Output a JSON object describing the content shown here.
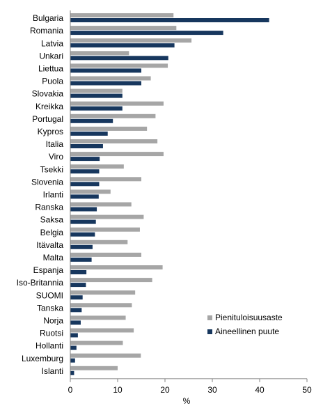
{
  "chart_data": {
    "type": "bar",
    "orientation": "horizontal",
    "categories": [
      "Bulgaria",
      "Romania",
      "Latvia",
      "Unkari",
      "Liettua",
      "Puola",
      "Slovakia",
      "Kreikka",
      "Portugal",
      "Kypros",
      "Italia",
      "Viro",
      "Tsekki",
      "Slovenia",
      "Irlanti",
      "Ranska",
      "Saksa",
      "Belgia",
      "Itävalta",
      "Malta",
      "Espanja",
      "Iso-Britannia",
      "SUOMI",
      "Tanska",
      "Norja",
      "Ruotsi",
      "Hollanti",
      "Luxemburg",
      "Islanti"
    ],
    "series": [
      {
        "name": "Pienituloisuusaste",
        "color": "#a6a6a6",
        "values": [
          21.8,
          22.4,
          25.6,
          12.4,
          20.6,
          17.0,
          11.0,
          19.7,
          18.0,
          16.2,
          18.4,
          19.7,
          11.3,
          15.0,
          8.5,
          12.9,
          15.5,
          14.7,
          12.1,
          15.0,
          19.5,
          17.3,
          13.7,
          13.0,
          11.7,
          13.4,
          11.1,
          14.9,
          10.0
        ]
      },
      {
        "name": "Aineellinen puute",
        "color": "#17375e",
        "values": [
          42.0,
          32.3,
          22.0,
          20.7,
          15.0,
          15.0,
          11.0,
          11.0,
          9.0,
          7.9,
          6.9,
          6.2,
          6.1,
          6.1,
          6.0,
          5.6,
          5.4,
          5.2,
          4.7,
          4.5,
          3.4,
          3.3,
          2.6,
          2.4,
          2.2,
          1.6,
          1.3,
          1.0,
          0.8
        ]
      }
    ],
    "xlabel": "%",
    "xlim": [
      0,
      50
    ],
    "xticks": [
      0,
      10,
      20,
      30,
      40,
      50
    ],
    "grid": false,
    "legend_position": "bottom-right"
  }
}
